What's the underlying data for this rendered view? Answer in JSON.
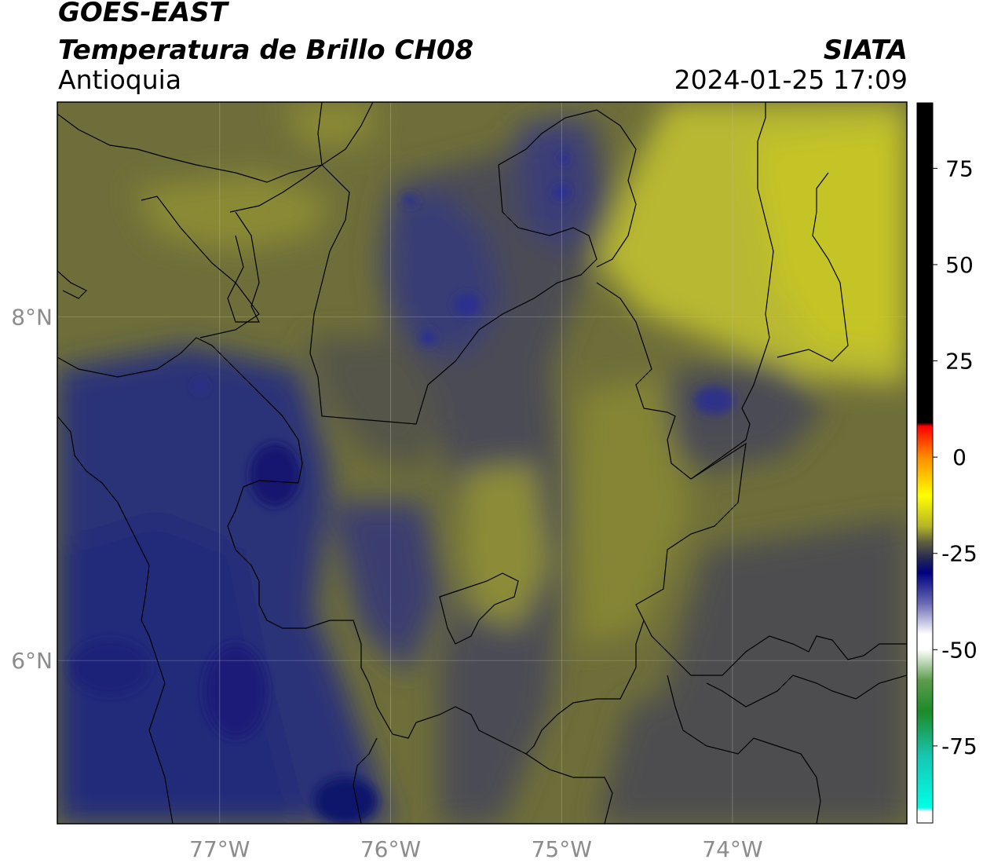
{
  "header": {
    "satellite": "GOES-EAST",
    "product": "Temperatura de Brillo CH08",
    "region": "Antioquia",
    "agency": "SIATA",
    "datetime": "2024-01-25 17:09"
  },
  "map": {
    "lon_range": [
      -77.95,
      -72.98
    ],
    "lat_range": [
      5.05,
      9.25
    ],
    "lon_ticks": [
      {
        "value": -77,
        "label": "77°W"
      },
      {
        "value": -76,
        "label": "76°W"
      },
      {
        "value": -75,
        "label": "75°W"
      },
      {
        "value": -74,
        "label": "74°W"
      }
    ],
    "lat_ticks": [
      {
        "value": 8,
        "label": "8°N"
      },
      {
        "value": 6,
        "label": "6°N"
      }
    ],
    "grid": true,
    "colors": {
      "cold_blue": "#0f1466",
      "blue": "#2a2f80",
      "gray": "#4b4b52",
      "olive": "#6e6e3a",
      "yellow_olive": "#a4a436",
      "yellow": "#c2c22a"
    }
  },
  "colorbar": {
    "range": [
      -95,
      92
    ],
    "ticks": [
      {
        "value": 75,
        "label": "75"
      },
      {
        "value": 50,
        "label": "50"
      },
      {
        "value": 25,
        "label": "25"
      },
      {
        "value": 0,
        "label": "0"
      },
      {
        "value": -25,
        "label": "-25"
      },
      {
        "value": -50,
        "label": "-50"
      },
      {
        "value": -75,
        "label": "-75"
      }
    ],
    "stops": [
      {
        "value": 92,
        "color": "#000000"
      },
      {
        "value": 9,
        "color": "#000000"
      },
      {
        "value": 8,
        "color": "#ff0000"
      },
      {
        "value": 0,
        "color": "#ff8c00"
      },
      {
        "value": -10,
        "color": "#ffff00"
      },
      {
        "value": -18,
        "color": "#b4b428"
      },
      {
        "value": -22,
        "color": "#606040"
      },
      {
        "value": -26,
        "color": "#2a2a50"
      },
      {
        "value": -30,
        "color": "#000080"
      },
      {
        "value": -38,
        "color": "#6a6ab4"
      },
      {
        "value": -46,
        "color": "#ffffff"
      },
      {
        "value": -50,
        "color": "#ffffff"
      },
      {
        "value": -58,
        "color": "#5c9c4c"
      },
      {
        "value": -66,
        "color": "#1e8a28"
      },
      {
        "value": -78,
        "color": "#16c8b4"
      },
      {
        "value": -91,
        "color": "#00ffe6"
      },
      {
        "value": -92,
        "color": "#ffffff"
      },
      {
        "value": -95,
        "color": "#ffffff"
      }
    ]
  }
}
